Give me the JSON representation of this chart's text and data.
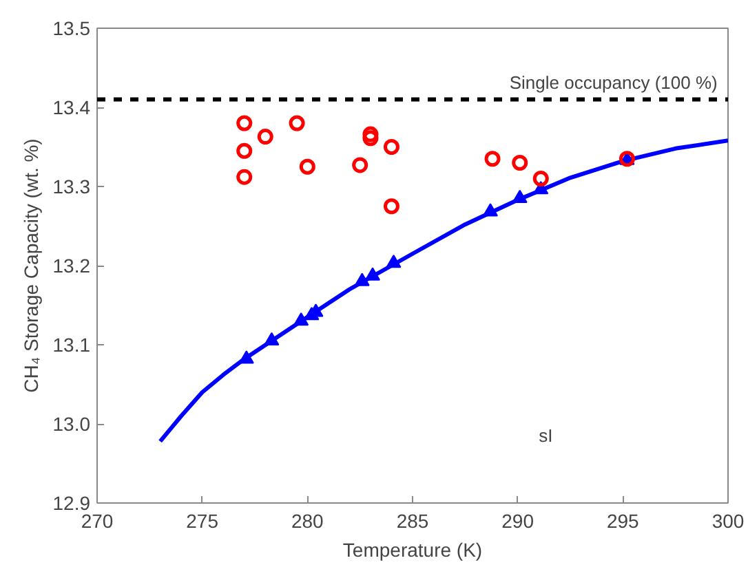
{
  "chart_data": {
    "type": "scatter",
    "xlabel": "Temperature (K)",
    "ylabel": "CH₄ Storage Capacity (wt. %)",
    "xlim": [
      270,
      300
    ],
    "xticks": [
      270,
      275,
      280,
      285,
      290,
      295,
      300
    ],
    "ylim": [
      12.9,
      13.5
    ],
    "yticks": [
      {
        "value": 12.9,
        "label": "12.9"
      },
      {
        "value": 13.0,
        "label": "13.0"
      },
      {
        "value": 13.1,
        "label": "13.1"
      },
      {
        "value": 13.2,
        "label": "13.2"
      },
      {
        "value": 13.3,
        "label": "13.3"
      },
      {
        "value": 13.4,
        "label": "13.4"
      },
      {
        "value": 13.5,
        "label": "13.5"
      }
    ],
    "grid": false,
    "ref_lines": [
      {
        "axis": "y",
        "value": 13.41,
        "label": "Single occupancy (100 %)",
        "color": "#000000",
        "line_style": "dashed"
      }
    ],
    "annotations": [
      "sI"
    ],
    "series": [
      {
        "type": "line",
        "color": "#0000ff",
        "marker": "none",
        "line_style": "solid",
        "x": [
          273,
          274,
          275,
          276,
          277,
          280,
          282,
          285,
          287.5,
          290,
          292.5,
          295,
          297.5,
          300
        ],
        "values": [
          12.978,
          13.01,
          13.04,
          13.062,
          13.082,
          13.135,
          13.17,
          13.215,
          13.252,
          13.283,
          13.311,
          13.332,
          13.348,
          13.358
        ]
      },
      {
        "color": "#0000ff",
        "marker": "triangle",
        "x": [
          277.1,
          278.3,
          279.7,
          280.2,
          280.4,
          282.6,
          283.1,
          284.1,
          288.7,
          290.1,
          291.1,
          295.2
        ],
        "values": [
          13.082,
          13.105,
          13.13,
          13.137,
          13.141,
          13.18,
          13.187,
          13.203,
          13.268,
          13.285,
          13.296,
          13.333
        ]
      },
      {
        "color": "#ff0000",
        "marker": "circle",
        "x": [
          277.0,
          277.0,
          277.0,
          278.0,
          279.5,
          280.0,
          280.2,
          280.3,
          282.5,
          283.0,
          283.0,
          284.0,
          284.0,
          288.8,
          290.1,
          291.1,
          295.2
        ],
        "values": [
          13.38,
          13.345,
          13.312,
          13.363,
          13.38,
          13.325,
          null,
          null,
          13.327,
          13.366,
          13.361,
          13.35,
          13.275,
          13.335,
          13.33,
          13.31,
          13.335
        ]
      }
    ]
  }
}
